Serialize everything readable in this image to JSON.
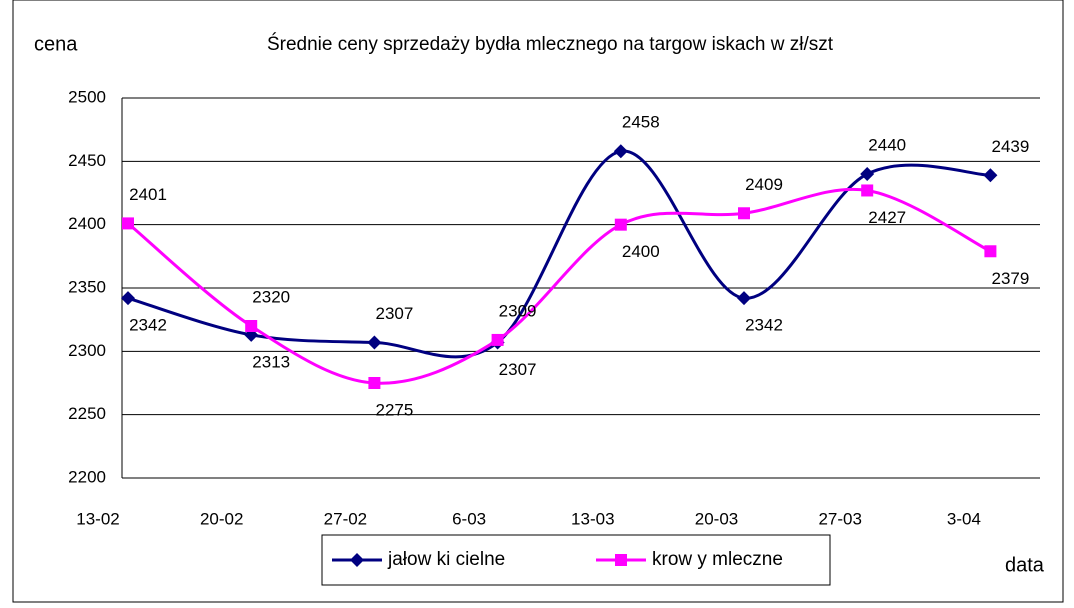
{
  "chart_data": {
    "type": "line",
    "title": "Średnie ceny sprzedaży bydła mlecznego na targow iskach w  zł/szt",
    "y_label": "cena",
    "x_label": "data",
    "categories": [
      "13-02",
      "20-02",
      "27-02",
      "6-03",
      "13-03",
      "20-03",
      "27-03",
      "3-04"
    ],
    "series": [
      {
        "name": "jałow ki cielne",
        "color": "#000080",
        "marker": "diamond",
        "values": [
          2342,
          2313,
          2307,
          2307,
          2458,
          2342,
          2440,
          2439
        ]
      },
      {
        "name": "krow y mleczne",
        "color": "#ff00ff",
        "marker": "square",
        "values": [
          2401,
          2320,
          2275,
          2309,
          2400,
          2409,
          2427,
          2379
        ]
      }
    ],
    "ylim": [
      2200,
      2500
    ],
    "yticks": [
      2200,
      2250,
      2300,
      2350,
      2400,
      2450,
      2500
    ],
    "grid": true,
    "smooth": true,
    "legend": "bottom"
  }
}
